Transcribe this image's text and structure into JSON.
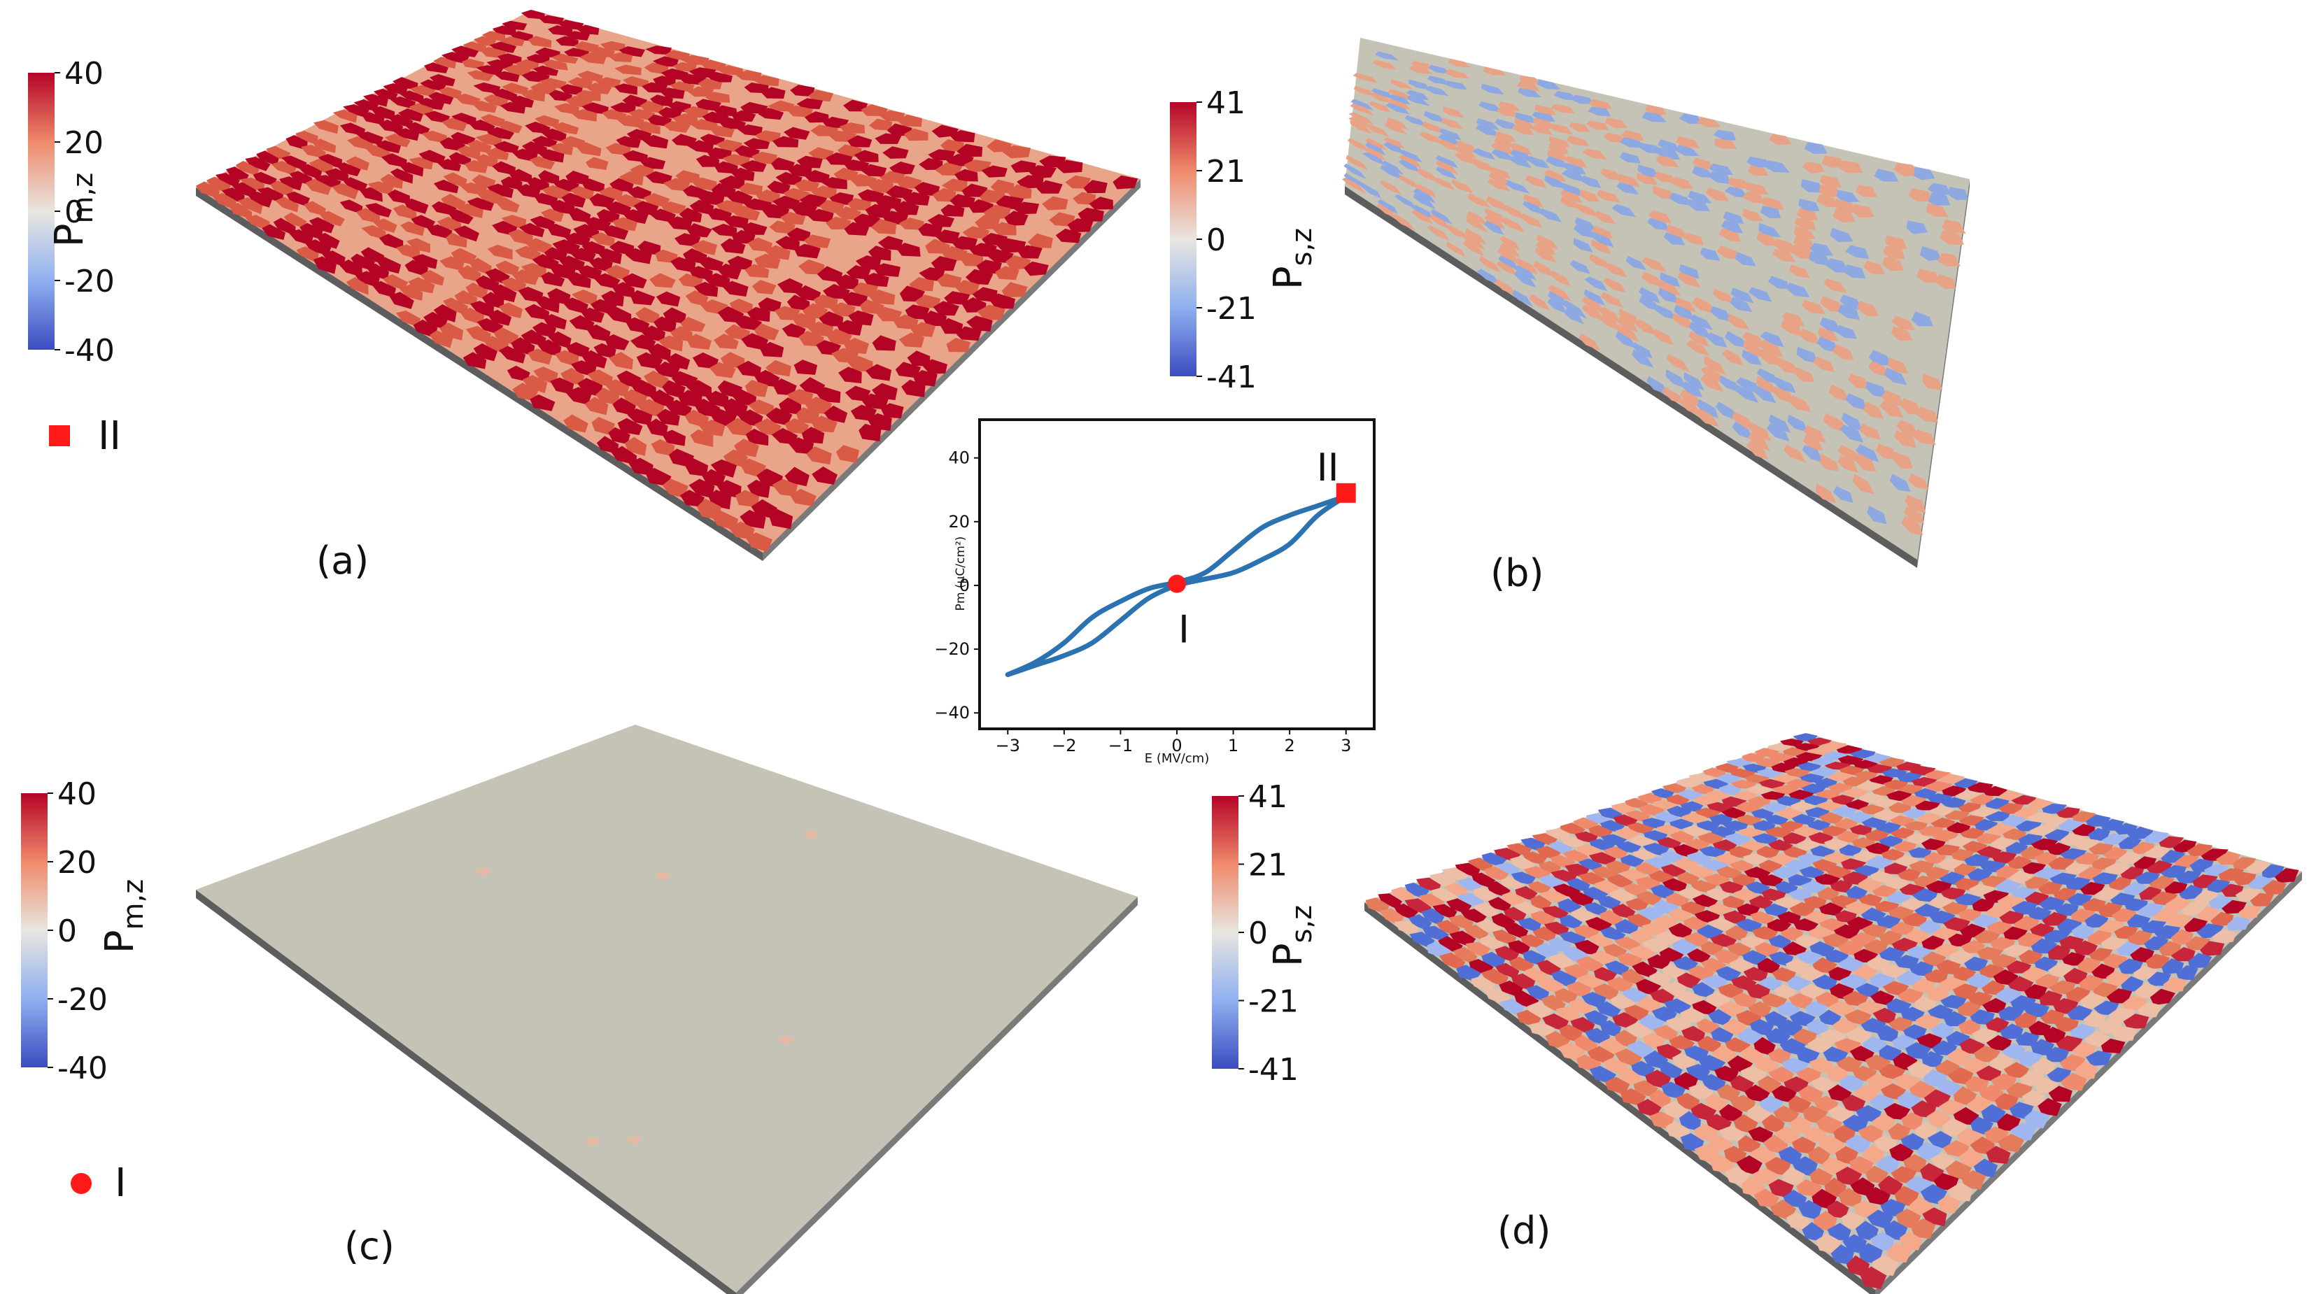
{
  "colors": {
    "cool": "#3b4cc0",
    "neutral": "#dddddd",
    "warm": "#b40426",
    "plate_flat": "#c5c3b6",
    "plate_edge": "#6b6b6b",
    "marker": "#ff1a1a",
    "loop": "#2a73b0"
  },
  "panels": [
    {
      "id": "a",
      "label": "(a)",
      "colorbar": {
        "title_main": "P",
        "title_sub": "m,z",
        "ticks": [
          "40",
          "20",
          "0",
          "-20",
          "-40"
        ]
      },
      "marker": {
        "shape": "square",
        "label": "II"
      }
    },
    {
      "id": "b",
      "label": "(b)",
      "colorbar": {
        "title_main": "P",
        "title_sub": "s,z",
        "ticks": [
          "41",
          "21",
          "0",
          "-21",
          "-41"
        ]
      }
    },
    {
      "id": "c",
      "label": "(c)",
      "colorbar": {
        "title_main": "P",
        "title_sub": "m,z",
        "ticks": [
          "40",
          "20",
          "0",
          "-20",
          "-40"
        ]
      },
      "marker": {
        "shape": "circle",
        "label": "I"
      }
    },
    {
      "id": "d",
      "label": "(d)",
      "colorbar": {
        "title_main": "P",
        "title_sub": "s,z",
        "ticks": [
          "41",
          "21",
          "0",
          "-21",
          "-41"
        ]
      }
    }
  ],
  "chart_data": {
    "type": "line",
    "xlabel": "E (MV/cm)",
    "ylabel": "Pm (μC/cm²)",
    "xlim": [
      -3.5,
      3.5
    ],
    "ylim": [
      -45,
      52
    ],
    "xticks": [
      "-3",
      "-2",
      "-1",
      "0",
      "1",
      "2",
      "3"
    ],
    "yticks": [
      "40",
      "20",
      "0",
      "-20",
      "-40"
    ],
    "grid": false,
    "series": [
      {
        "values_upper": [
          [
            -3,
            -28
          ],
          [
            -2.5,
            -24
          ],
          [
            -2,
            -18
          ],
          [
            -1.5,
            -10
          ],
          [
            -1,
            -5
          ],
          [
            -0.5,
            -1
          ],
          [
            0,
            1
          ],
          [
            0.5,
            4
          ],
          [
            1,
            11
          ],
          [
            1.5,
            18
          ],
          [
            2,
            22
          ],
          [
            2.5,
            25
          ],
          [
            3,
            28
          ]
        ],
        "values_lower": [
          [
            -3,
            -28
          ],
          [
            -2.5,
            -25
          ],
          [
            -2,
            -22
          ],
          [
            -1.5,
            -18
          ],
          [
            -1,
            -11
          ],
          [
            -0.5,
            -4
          ],
          [
            0,
            0
          ],
          [
            0.5,
            2
          ],
          [
            1,
            4
          ],
          [
            1.5,
            8
          ],
          [
            2,
            13
          ],
          [
            2.5,
            22
          ],
          [
            3,
            28
          ]
        ]
      }
    ],
    "annotations": [
      {
        "x": 0,
        "y": 0.5,
        "marker": "circle",
        "label": "I"
      },
      {
        "x": 3,
        "y": 29,
        "marker": "square",
        "label": "II"
      }
    ]
  }
}
